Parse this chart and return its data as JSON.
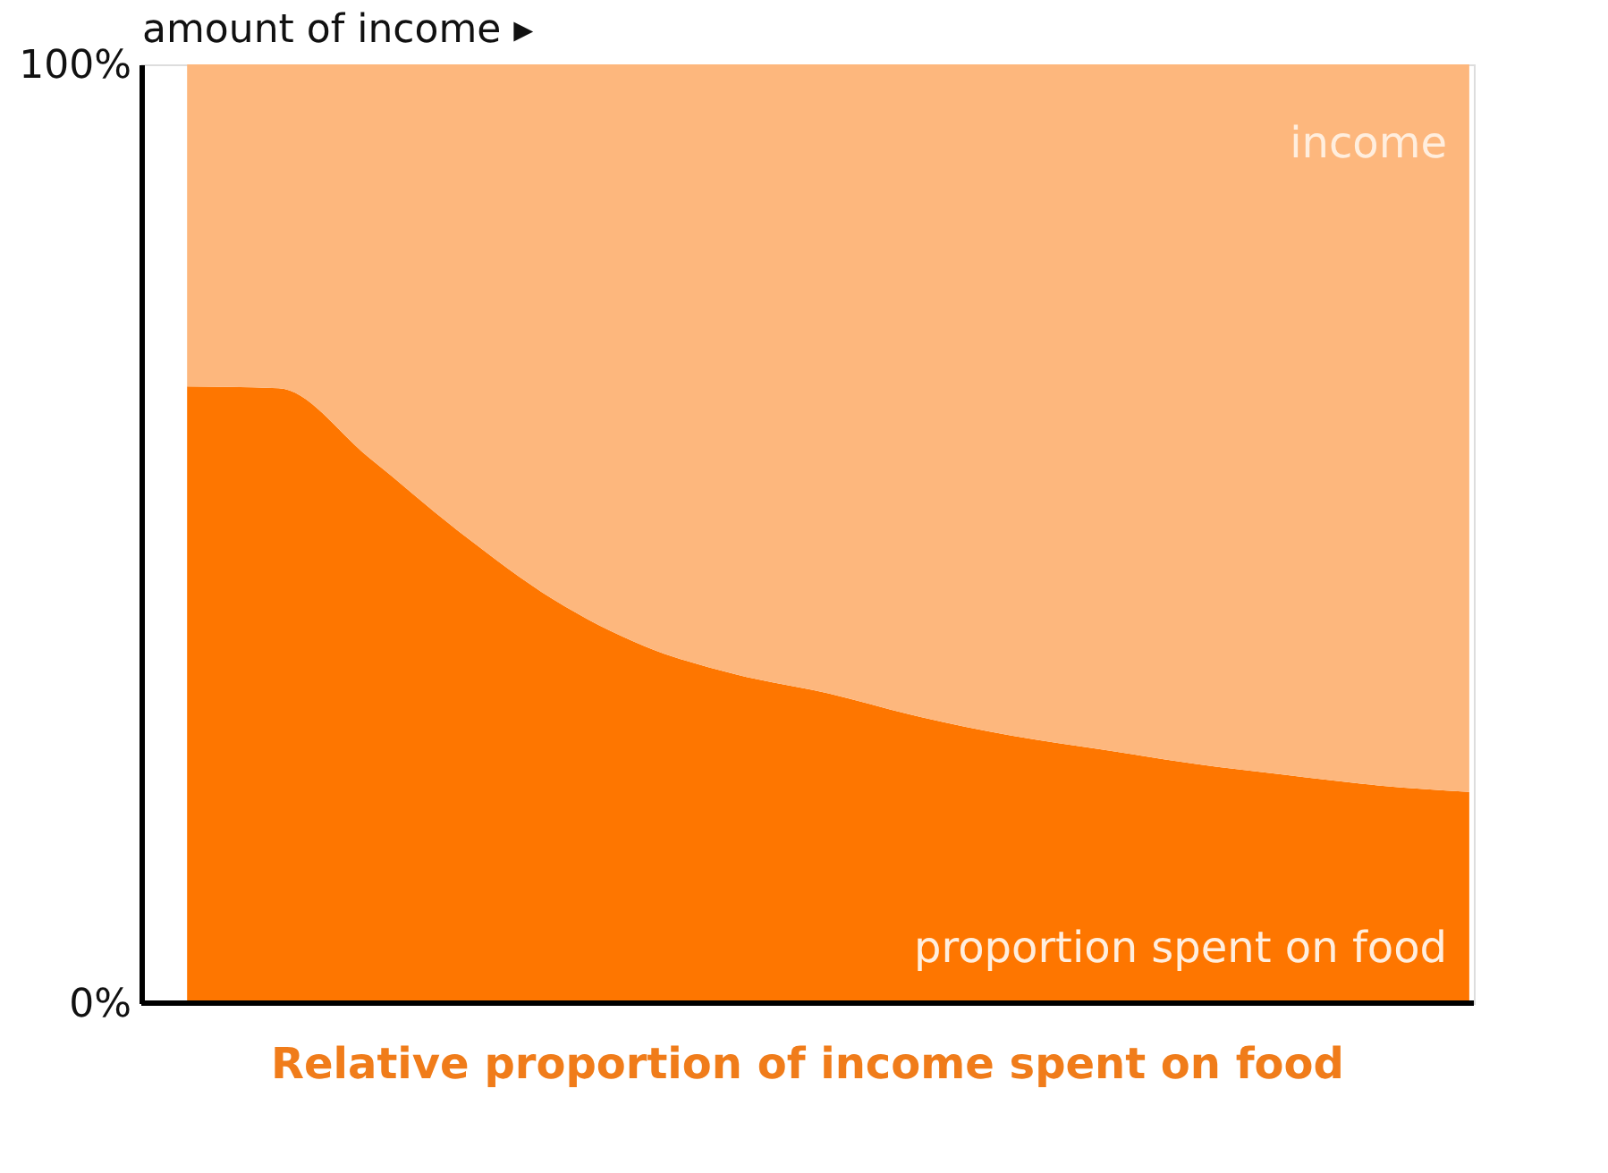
{
  "chart_data": {
    "type": "area",
    "title": "Relative proportion of income spent on food",
    "xlabel": "amount of income ▸",
    "categories": [
      null,
      null,
      null,
      null,
      null,
      null,
      null,
      null,
      null,
      null,
      null,
      null,
      null,
      null,
      null
    ],
    "stacked": true,
    "series": [
      {
        "name": "proportion spent on food",
        "color": "#fe7600",
        "values": [
          65.7,
          65.5,
          58,
          50,
          43,
          38,
          35,
          33,
          30.5,
          28.5,
          27,
          25.5,
          24.3,
          23.2,
          22.5
        ]
      },
      {
        "name": "income",
        "color": "#fdb77d",
        "values": [
          34.3,
          34.5,
          42,
          50,
          57,
          62,
          65,
          67,
          69.5,
          71.5,
          73,
          74.5,
          75.7,
          76.8,
          77.5
        ]
      }
    ],
    "ylim": [
      0,
      100
    ],
    "yticks": [
      {
        "value": 0,
        "label": "0%"
      },
      {
        "value": 100,
        "label": "100%"
      }
    ],
    "legend": false,
    "tick_labels": "y"
  }
}
